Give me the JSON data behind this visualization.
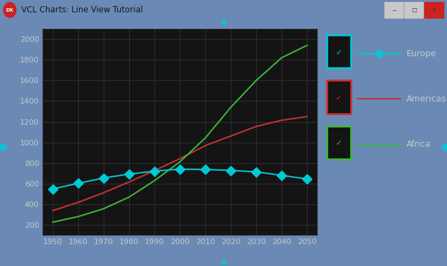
{
  "title": "VCL Charts: Line View Tutorial",
  "window_bg": "#6a8ab5",
  "titlebar_color": "#a8c0d8",
  "plot_bg": "#141414",
  "legend_bg": "#141414",
  "border_color": "#5a7a9a",
  "x_values": [
    1950,
    1960,
    1970,
    1980,
    1990,
    2000,
    2010,
    2020,
    2030,
    2040,
    2050
  ],
  "europe": [
    550,
    604,
    656,
    693,
    722,
    742,
    738,
    729,
    715,
    681,
    646
  ],
  "americas": [
    340,
    420,
    513,
    617,
    727,
    843,
    969,
    1062,
    1155,
    1214,
    1250
  ],
  "africa": [
    228,
    282,
    358,
    470,
    630,
    812,
    1044,
    1340,
    1600,
    1820,
    1940
  ],
  "europe_color": "#00c8d4",
  "americas_color": "#c83232",
  "africa_color": "#3cb83c",
  "grid_color": "#2e2e2e",
  "text_color": "#c8c8c8",
  "axis_text_color": "#c8c8c8",
  "ylim": [
    100,
    2100
  ],
  "xlim": [
    1946,
    2054
  ],
  "yticks": [
    200,
    400,
    600,
    800,
    1000,
    1200,
    1400,
    1600,
    1800,
    2000
  ],
  "xticks": [
    1950,
    1960,
    1970,
    1980,
    1990,
    2000,
    2010,
    2020,
    2030,
    2040,
    2050
  ],
  "cyan_dot_color": "#00c8d4",
  "legend_items": [
    "Europe",
    "Americas",
    "Africa"
  ],
  "legend_check_colors": [
    "#00c8d4",
    "#c83232",
    "#3cb83c"
  ],
  "legend_line_colors": [
    "#00c8d4",
    "#c83232",
    "#3cb83c"
  ],
  "legend_box_colors": [
    "#00c8d4",
    "#c83232",
    "#3cb83c"
  ]
}
